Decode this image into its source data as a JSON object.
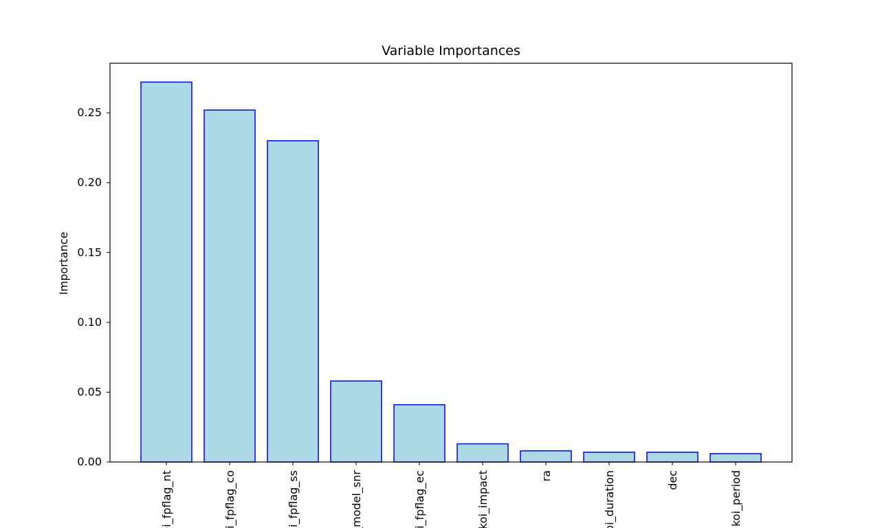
{
  "chart_data": {
    "type": "bar",
    "title": "Variable Importances",
    "xlabel": "",
    "ylabel": "Importance",
    "categories": [
      "koi_fpflag_nt",
      "koi_fpflag_co",
      "koi_fpflag_ss",
      "koi_model_snr",
      "koi_fpflag_ec",
      "koi_impact",
      "ra",
      "koi_duration",
      "dec",
      "koi_period"
    ],
    "values": [
      0.272,
      0.252,
      0.23,
      0.058,
      0.041,
      0.013,
      0.008,
      0.007,
      0.007,
      0.006
    ],
    "ylim": [
      0,
      0.2855
    ],
    "yticks": [
      "0.00",
      "0.05",
      "0.10",
      "0.15",
      "0.20",
      "0.25"
    ],
    "grid": false,
    "bar_fill_color": "#add8e6",
    "bar_edge_color": "#0000ff"
  }
}
